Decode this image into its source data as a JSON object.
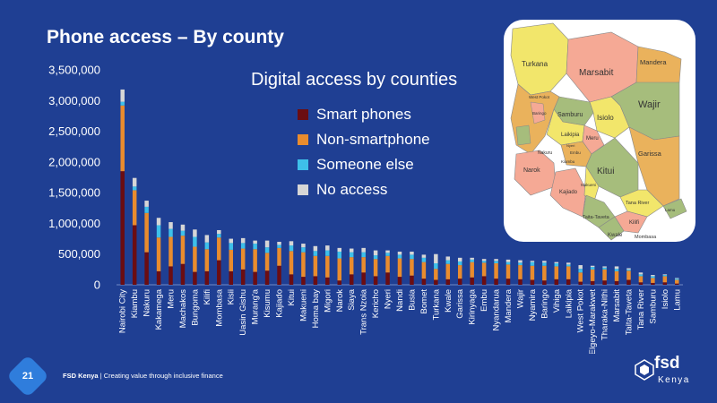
{
  "slide": {
    "title": "Phone access – By county",
    "page_number": "21",
    "footer_brand": "FSD Kenya",
    "footer_separator": "|",
    "footer_tagline": "Creating value through inclusive finance",
    "logo_word": "fsd",
    "logo_sub": "Kenya"
  },
  "colors": {
    "background": "#1f3f93",
    "smart": "#6b0d12",
    "non_smart": "#e98c2e",
    "someone_else": "#3ec0ea",
    "no_access": "#d6d6d6"
  },
  "chart_data": {
    "type": "bar",
    "stacked": true,
    "title": "Digital access by counties",
    "xlabel": "",
    "ylabel": "",
    "ylim": [
      0,
      3500000
    ],
    "yticks": [
      0,
      500000,
      1000000,
      1500000,
      2000000,
      2500000,
      3000000,
      3500000
    ],
    "ytick_labels": [
      "0",
      "500,000",
      "1,000,000",
      "1,500,000",
      "2,000,000",
      "2,500,000",
      "3,000,000",
      "3,500,000"
    ],
    "legend_position": "top-right",
    "grid": false,
    "categories": [
      "Nairobi City",
      "Kiambu",
      "Nakuru",
      "Kakamega",
      "Meru",
      "Machakos",
      "Bungoma",
      "Kilifi",
      "Mombasa",
      "Kisii",
      "Uasin Gishu",
      "Murang'a",
      "Kisumu",
      "Kajiado",
      "Kitui",
      "Makueni",
      "Homa bay",
      "Migori",
      "Narok",
      "Siaya",
      "Trans Nzoia",
      "Kericho",
      "Nyeri",
      "Nandi",
      "Busia",
      "Bomet",
      "Turkana",
      "Kwale",
      "Garissa",
      "Kirinyaga",
      "Embu",
      "Nyandarua",
      "Mandera",
      "Wajir",
      "Nyamira",
      "Baringo",
      "Vihiga",
      "Laikipia",
      "West Pokot",
      "Elgeyo-Marakwet",
      "Tharaka-Nithi",
      "Marsabit",
      "Taita-Taveta",
      "Tana River",
      "Samburu",
      "Isiolo",
      "Lamu"
    ],
    "series": [
      {
        "name": "Smart phones",
        "values": [
          1850000,
          970000,
          530000,
          220000,
          300000,
          340000,
          210000,
          220000,
          400000,
          220000,
          250000,
          210000,
          230000,
          310000,
          170000,
          130000,
          140000,
          120000,
          70000,
          170000,
          200000,
          140000,
          200000,
          130000,
          150000,
          100000,
          80000,
          90000,
          100000,
          120000,
          140000,
          100000,
          100000,
          90000,
          80000,
          70000,
          90000,
          90000,
          50000,
          60000,
          70000,
          60000,
          80000,
          40000,
          30000,
          40000,
          20000
        ]
      },
      {
        "name": "Non-smartphone",
        "values": [
          1070000,
          570000,
          640000,
          550000,
          480000,
          460000,
          410000,
          360000,
          370000,
          350000,
          340000,
          370000,
          290000,
          290000,
          380000,
          400000,
          330000,
          350000,
          360000,
          280000,
          250000,
          280000,
          270000,
          300000,
          270000,
          270000,
          180000,
          250000,
          220000,
          250000,
          220000,
          250000,
          230000,
          230000,
          230000,
          240000,
          210000,
          210000,
          150000,
          190000,
          180000,
          160000,
          150000,
          100000,
          80000,
          100000,
          60000
        ]
      },
      {
        "name": "Someone else",
        "values": [
          60000,
          60000,
          100000,
          200000,
          130000,
          80000,
          160000,
          110000,
          60000,
          110000,
          90000,
          90000,
          90000,
          50000,
          90000,
          80000,
          80000,
          90000,
          110000,
          80000,
          80000,
          60000,
          50000,
          60000,
          70000,
          70000,
          90000,
          60000,
          60000,
          40000,
          30000,
          40000,
          40000,
          40000,
          60000,
          50000,
          50000,
          30000,
          60000,
          40000,
          30000,
          40000,
          20000,
          30000,
          30000,
          20000,
          20000
        ]
      },
      {
        "name": "No access",
        "values": [
          200000,
          140000,
          100000,
          120000,
          110000,
          100000,
          120000,
          120000,
          60000,
          70000,
          80000,
          50000,
          110000,
          50000,
          70000,
          60000,
          80000,
          80000,
          60000,
          60000,
          70000,
          80000,
          40000,
          50000,
          50000,
          50000,
          150000,
          60000,
          60000,
          30000,
          30000,
          30000,
          40000,
          40000,
          20000,
          30000,
          20000,
          30000,
          60000,
          20000,
          20000,
          40000,
          20000,
          30000,
          20000,
          10000,
          10000
        ]
      }
    ]
  },
  "map": {
    "labels": [
      "Turkana",
      "Marsabit",
      "Mandera",
      "Wajir",
      "Samburu",
      "Isiolo",
      "Garissa",
      "Kitui",
      "Narok",
      "Kajiado",
      "Tana River",
      "Taita-Taveta",
      "Kilifi",
      "Kwale",
      "Mombasa",
      "Laikipia",
      "Meru",
      "West Pokot",
      "Baringo",
      "Nakuru",
      "Embu",
      "Makueni",
      "Kiambu",
      "Lamu",
      "Nyeri"
    ]
  }
}
